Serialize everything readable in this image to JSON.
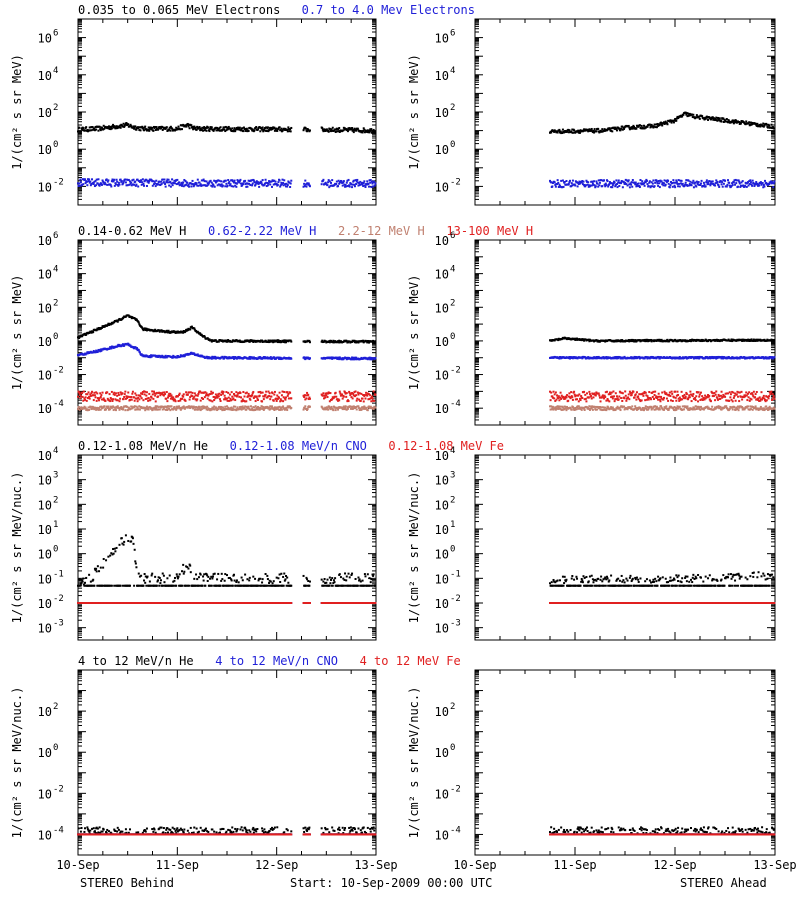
{
  "footer": {
    "left": "STEREO Behind",
    "center": "Start: 10-Sep-2009 00:00 UTC",
    "right": "STEREO Ahead"
  },
  "colors": {
    "black": "#000000",
    "blue": "#1f1fd8",
    "tan": "#c08070",
    "red": "#e02020"
  },
  "x_ticks": [
    "10-Sep",
    "11-Sep",
    "12-Sep",
    "13-Sep"
  ],
  "chart_data": [
    {
      "type": "scatter",
      "id": "electrons-behind",
      "panel": "Electrons / STEREO Behind",
      "ylabel": "1/(cm² s sr MeV)",
      "yscale": "log",
      "ylim_exp": [
        -3,
        7
      ],
      "ytick_exps": [
        -2,
        0,
        2,
        4,
        6
      ],
      "xlim_days": [
        0,
        3
      ],
      "legend": [
        {
          "text": "0.035 to 0.065 MeV Electrons",
          "color": "black"
        },
        {
          "text": "0.7 to 4.0 Mev Electrons",
          "color": "blue"
        }
      ],
      "series": [
        {
          "name": "0.035 to 0.065 MeV Electrons",
          "color": "black",
          "log10_profile": [
            [
              0,
              1.05
            ],
            [
              0.2,
              1.1
            ],
            [
              0.35,
              1.2
            ],
            [
              0.5,
              1.3
            ],
            [
              0.55,
              1.2
            ],
            [
              0.65,
              1.1
            ],
            [
              1.0,
              1.1
            ],
            [
              1.1,
              1.3
            ],
            [
              1.18,
              1.1
            ],
            [
              2.5,
              1.05
            ],
            [
              3.0,
              1.0
            ]
          ],
          "gaps_days": [
            [
              2.15,
              2.27
            ],
            [
              2.34,
              2.45
            ]
          ],
          "scatter_dex": 0.12
        },
        {
          "name": "0.7 to 4.0 Mev Electrons",
          "color": "blue",
          "log10_profile": [
            [
              0,
              -1.8
            ],
            [
              3.0,
              -1.85
            ]
          ],
          "gaps_days": [
            [
              2.15,
              2.27
            ],
            [
              2.34,
              2.45
            ]
          ],
          "scatter_dex": 0.2
        }
      ]
    },
    {
      "type": "scatter",
      "id": "electrons-ahead",
      "panel": "Electrons / STEREO Ahead",
      "ylabel": "1/(cm² s sr MeV)",
      "yscale": "log",
      "ylim_exp": [
        -3,
        7
      ],
      "ytick_exps": [
        -2,
        0,
        2,
        4,
        6
      ],
      "xlim_days": [
        0,
        3
      ],
      "series": [
        {
          "name": "0.035 to 0.065 MeV Electrons",
          "color": "black",
          "log10_profile": [
            [
              0.75,
              0.95
            ],
            [
              1.3,
              1.0
            ],
            [
              1.5,
              1.15
            ],
            [
              1.8,
              1.25
            ],
            [
              2.0,
              1.55
            ],
            [
              2.1,
              1.9
            ],
            [
              2.2,
              1.75
            ],
            [
              2.5,
              1.55
            ],
            [
              3.0,
              1.2
            ]
          ],
          "start_day": 0.75,
          "scatter_dex": 0.1
        },
        {
          "name": "0.7 to 4.0 Mev Electrons",
          "color": "blue",
          "log10_profile": [
            [
              0.75,
              -1.85
            ],
            [
              3.0,
              -1.85
            ]
          ],
          "start_day": 0.75,
          "scatter_dex": 0.2
        }
      ]
    },
    {
      "type": "scatter",
      "id": "protons-behind",
      "panel": "Protons / STEREO Behind",
      "ylabel": "1/(cm² s sr MeV)",
      "yscale": "log",
      "ylim_exp": [
        -5,
        6
      ],
      "ytick_exps": [
        -4,
        -2,
        0,
        2,
        4,
        6
      ],
      "xlim_days": [
        0,
        3
      ],
      "legend": [
        {
          "text": "0.14-0.62 MeV H",
          "color": "black"
        },
        {
          "text": "0.62-2.22 MeV H",
          "color": "blue"
        },
        {
          "text": "2.2-12 MeV H",
          "color": "tan"
        },
        {
          "text": "13-100 MeV H",
          "color": "red"
        }
      ],
      "series": [
        {
          "name": "0.14-0.62 MeV H",
          "color": "black",
          "log10_profile": [
            [
              0,
              0.2
            ],
            [
              0.2,
              0.7
            ],
            [
              0.4,
              1.2
            ],
            [
              0.5,
              1.5
            ],
            [
              0.6,
              1.2
            ],
            [
              0.65,
              0.7
            ],
            [
              0.9,
              0.55
            ],
            [
              1.05,
              0.5
            ],
            [
              1.15,
              0.8
            ],
            [
              1.25,
              0.3
            ],
            [
              1.35,
              0.0
            ],
            [
              3.0,
              -0.05
            ]
          ],
          "gaps_days": [
            [
              2.15,
              2.27
            ],
            [
              2.34,
              2.45
            ]
          ],
          "scatter_dex": 0.06
        },
        {
          "name": "0.62-2.22 MeV H",
          "color": "blue",
          "log10_profile": [
            [
              0,
              -0.85
            ],
            [
              0.2,
              -0.6
            ],
            [
              0.4,
              -0.3
            ],
            [
              0.5,
              -0.2
            ],
            [
              0.6,
              -0.5
            ],
            [
              0.65,
              -0.9
            ],
            [
              1.0,
              -0.95
            ],
            [
              1.15,
              -0.75
            ],
            [
              1.3,
              -1.0
            ],
            [
              3.0,
              -1.05
            ]
          ],
          "gaps_days": [
            [
              2.15,
              2.27
            ],
            [
              2.34,
              2.45
            ]
          ],
          "scatter_dex": 0.06
        },
        {
          "name": "2.2-12 MeV H",
          "color": "tan",
          "log10_profile": [
            [
              0,
              -4.0
            ],
            [
              3.0,
              -4.0
            ]
          ],
          "gaps_days": [
            [
              2.15,
              2.27
            ],
            [
              2.34,
              2.45
            ]
          ],
          "scatter_dex": 0.12
        },
        {
          "name": "13-100 MeV H",
          "color": "red",
          "log10_profile": [
            [
              0,
              -3.3
            ],
            [
              3.0,
              -3.3
            ]
          ],
          "gaps_days": [
            [
              2.15,
              2.27
            ],
            [
              2.34,
              2.45
            ]
          ],
          "scatter_dex": 0.3
        }
      ]
    },
    {
      "type": "scatter",
      "id": "protons-ahead",
      "panel": "Protons / STEREO Ahead",
      "ylabel": "1/(cm² s sr MeV)",
      "yscale": "log",
      "ylim_exp": [
        -5,
        6
      ],
      "ytick_exps": [
        -4,
        -2,
        0,
        2,
        4,
        6
      ],
      "xlim_days": [
        0,
        3
      ],
      "series": [
        {
          "name": "0.14-0.62 MeV H",
          "color": "black",
          "log10_profile": [
            [
              0.75,
              0.0
            ],
            [
              0.9,
              0.15
            ],
            [
              1.2,
              0.0
            ],
            [
              3.0,
              0.05
            ]
          ],
          "start_day": 0.75,
          "scatter_dex": 0.05
        },
        {
          "name": "0.62-2.22 MeV H",
          "color": "blue",
          "log10_profile": [
            [
              0.75,
              -1.0
            ],
            [
              3.0,
              -1.0
            ]
          ],
          "start_day": 0.75,
          "scatter_dex": 0.05
        },
        {
          "name": "2.2-12 MeV H",
          "color": "tan",
          "log10_profile": [
            [
              0.75,
              -4.0
            ],
            [
              3.0,
              -4.0
            ]
          ],
          "start_day": 0.75,
          "scatter_dex": 0.12
        },
        {
          "name": "13-100 MeV H",
          "color": "red",
          "log10_profile": [
            [
              0.75,
              -3.3
            ],
            [
              3.0,
              -3.3
            ]
          ],
          "start_day": 0.75,
          "scatter_dex": 0.3
        }
      ]
    },
    {
      "type": "scatter",
      "id": "heavy-low-behind",
      "panel": "He/CNO/Fe low energy / STEREO Behind",
      "ylabel": "1/(cm² s sr MeV/nuc.)",
      "yscale": "log",
      "ylim_exp": [
        -3.5,
        4
      ],
      "ytick_exps": [
        -3,
        -2,
        -1,
        0,
        1,
        2,
        3,
        4
      ],
      "xlim_days": [
        0,
        3
      ],
      "legend": [
        {
          "text": "0.12-1.08 MeV/n He",
          "color": "black"
        },
        {
          "text": "0.12-1.08 MeV/n CNO",
          "color": "blue"
        },
        {
          "text": "0.12-1.08 MeV Fe",
          "color": "red"
        }
      ],
      "series": [
        {
          "name": "0.12-1.08 MeV/n He",
          "color": "black",
          "log10_profile": [
            [
              0,
              -1.2
            ],
            [
              0.15,
              -0.9
            ],
            [
              0.25,
              -0.4
            ],
            [
              0.35,
              0.0
            ],
            [
              0.45,
              0.5
            ],
            [
              0.55,
              0.7
            ],
            [
              0.6,
              -1.0
            ],
            [
              1.0,
              -1.0
            ],
            [
              1.1,
              -0.4
            ],
            [
              1.2,
              -1.0
            ],
            [
              3.0,
              -1.0
            ]
          ],
          "floor_exp": -1.3,
          "gaps_days": [
            [
              2.15,
              2.27
            ],
            [
              2.34,
              2.45
            ]
          ],
          "scatter_dex": 0.2
        },
        {
          "name": "0.12-1.08 MeV/n CNO",
          "color": "blue",
          "log10_profile": [
            [
              0,
              -2.0
            ],
            [
              3.0,
              -2.0
            ]
          ],
          "gaps_days": [
            [
              2.15,
              2.27
            ],
            [
              2.34,
              2.45
            ]
          ],
          "scatter_dex": 0.0
        },
        {
          "name": "0.12-1.08 MeV Fe",
          "color": "red",
          "log10_profile": [
            [
              0,
              -2.0
            ],
            [
              3.0,
              -2.0
            ]
          ],
          "gaps_days": [
            [
              2.15,
              2.27
            ],
            [
              2.34,
              2.45
            ]
          ],
          "scatter_dex": 0.0
        }
      ]
    },
    {
      "type": "scatter",
      "id": "heavy-low-ahead",
      "panel": "He/CNO/Fe low energy / STEREO Ahead",
      "ylabel": "1/(cm² s sr MeV/nuc.)",
      "yscale": "log",
      "ylim_exp": [
        -3.5,
        4
      ],
      "ytick_exps": [
        -3,
        -2,
        -1,
        0,
        1,
        2,
        3,
        4
      ],
      "xlim_days": [
        0,
        3
      ],
      "series": [
        {
          "name": "0.12-1.08 MeV/n He",
          "color": "black",
          "log10_profile": [
            [
              0.75,
              -1.05
            ],
            [
              2.5,
              -1.0
            ],
            [
              2.85,
              -0.85
            ],
            [
              3.0,
              -1.0
            ]
          ],
          "floor_exp": -1.3,
          "start_day": 0.75,
          "scatter_dex": 0.15
        },
        {
          "name": "0.12-1.08 MeV/n CNO",
          "color": "blue",
          "log10_profile": [
            [
              0.75,
              -2.0
            ],
            [
              3.0,
              -2.0
            ]
          ],
          "start_day": 0.75,
          "scatter_dex": 0.0
        },
        {
          "name": "0.12-1.08 MeV Fe",
          "color": "red",
          "log10_profile": [
            [
              0.75,
              -2.0
            ],
            [
              3.0,
              -2.0
            ]
          ],
          "start_day": 0.75,
          "scatter_dex": 0.0
        }
      ]
    },
    {
      "type": "scatter",
      "id": "heavy-high-behind",
      "panel": "He/CNO/Fe high energy / STEREO Behind",
      "ylabel": "1/(cm² s sr MeV/nuc.)",
      "yscale": "log",
      "ylim_exp": [
        -5,
        4
      ],
      "ytick_exps": [
        -4,
        -2,
        0,
        2
      ],
      "xlim_days": [
        0,
        3
      ],
      "legend": [
        {
          "text": "4 to 12 MeV/n He",
          "color": "black"
        },
        {
          "text": "4 to 12 MeV/n CNO",
          "color": "blue"
        },
        {
          "text": "4 to 12 MeV Fe",
          "color": "red"
        }
      ],
      "series": [
        {
          "name": "4 to 12 MeV/n He",
          "color": "black",
          "log10_profile": [
            [
              0,
              -3.8
            ],
            [
              3.0,
              -3.8
            ]
          ],
          "floor_exp": -4.0,
          "gaps_days": [
            [
              2.15,
              2.27
            ],
            [
              2.34,
              2.45
            ]
          ],
          "scatter_dex": 0.15
        },
        {
          "name": "4 to 12 MeV/n CNO",
          "color": "blue",
          "log10_profile": [
            [
              0,
              -4.0
            ],
            [
              3.0,
              -4.0
            ]
          ],
          "gaps_days": [
            [
              2.15,
              2.27
            ],
            [
              2.34,
              2.45
            ]
          ],
          "scatter_dex": 0.0
        },
        {
          "name": "4 to 12 MeV Fe",
          "color": "red",
          "log10_profile": [
            [
              0,
              -4.0
            ],
            [
              3.0,
              -4.0
            ]
          ],
          "gaps_days": [
            [
              2.15,
              2.27
            ],
            [
              2.34,
              2.45
            ]
          ],
          "scatter_dex": 0.0
        }
      ]
    },
    {
      "type": "scatter",
      "id": "heavy-high-ahead",
      "panel": "He/CNO/Fe high energy / STEREO Ahead",
      "ylabel": "1/(cm² s sr MeV/nuc.)",
      "yscale": "log",
      "ylim_exp": [
        -5,
        4
      ],
      "ytick_exps": [
        -4,
        -2,
        0,
        2
      ],
      "xlim_days": [
        0,
        3
      ],
      "series": [
        {
          "name": "4 to 12 MeV/n He",
          "color": "black",
          "log10_profile": [
            [
              0.75,
              -3.8
            ],
            [
              3.0,
              -3.8
            ]
          ],
          "floor_exp": -4.0,
          "start_day": 0.75,
          "scatter_dex": 0.15
        },
        {
          "name": "4 to 12 MeV/n CNO",
          "color": "blue",
          "log10_profile": [
            [
              0.75,
              -4.0
            ],
            [
              3.0,
              -4.0
            ]
          ],
          "start_day": 0.75,
          "scatter_dex": 0.0
        },
        {
          "name": "4 to 12 MeV Fe",
          "color": "red",
          "log10_profile": [
            [
              0.75,
              -4.0
            ],
            [
              3.0,
              -4.0
            ]
          ],
          "start_day": 0.75,
          "scatter_dex": 0.0
        }
      ]
    }
  ]
}
